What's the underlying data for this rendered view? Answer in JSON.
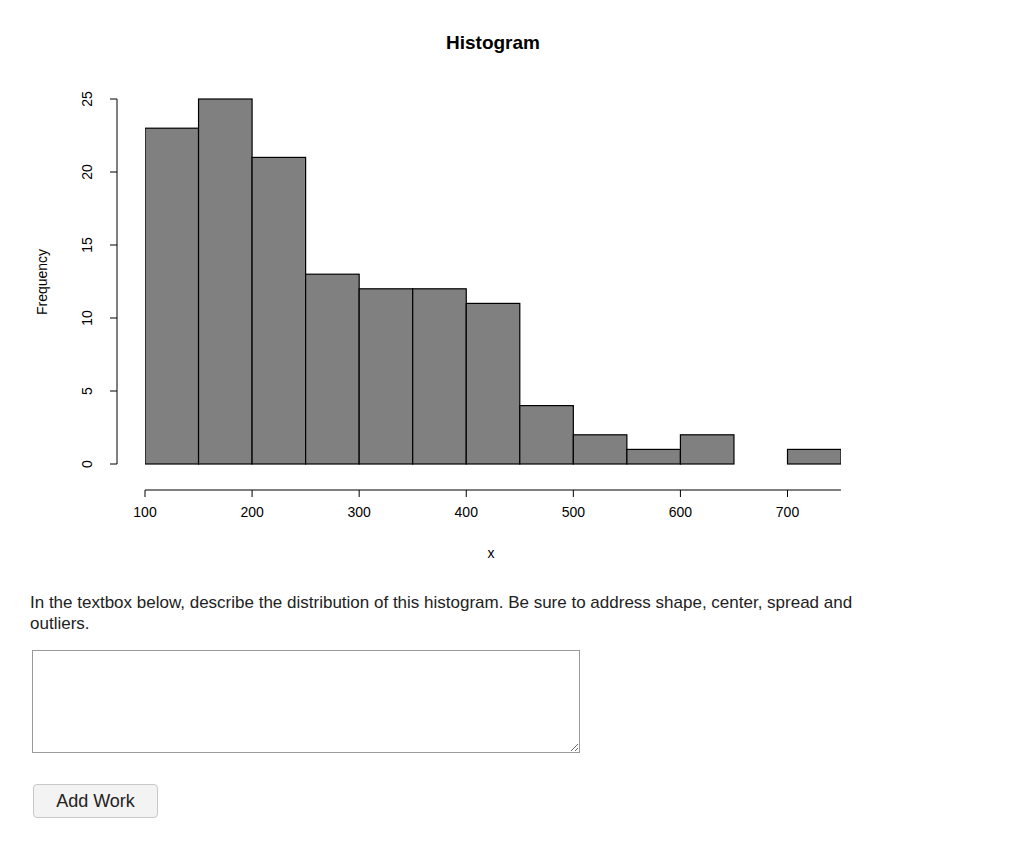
{
  "chart_data": {
    "type": "histogram",
    "title": "Histogram",
    "x_label": "x",
    "y_label": "Frequency",
    "bins": [
      100,
      150,
      200,
      250,
      300,
      350,
      400,
      450,
      500,
      550,
      600,
      650,
      700,
      750
    ],
    "values": [
      23,
      25,
      21,
      13,
      12,
      12,
      11,
      4,
      2,
      1,
      2,
      0,
      1
    ],
    "color": "#808080",
    "xlim": [
      100,
      750
    ],
    "xticks": [
      100,
      200,
      300,
      400,
      500,
      600,
      700
    ],
    "ylim": [
      0,
      25
    ],
    "yticks": [
      0,
      5,
      10,
      15,
      20,
      25
    ]
  },
  "question": {
    "prompt_lines": [
      "In the textbox below, describe the distribution of this histogram. Be sure to address shape, center, spread and",
      "outliers."
    ],
    "button": "Add Work"
  }
}
